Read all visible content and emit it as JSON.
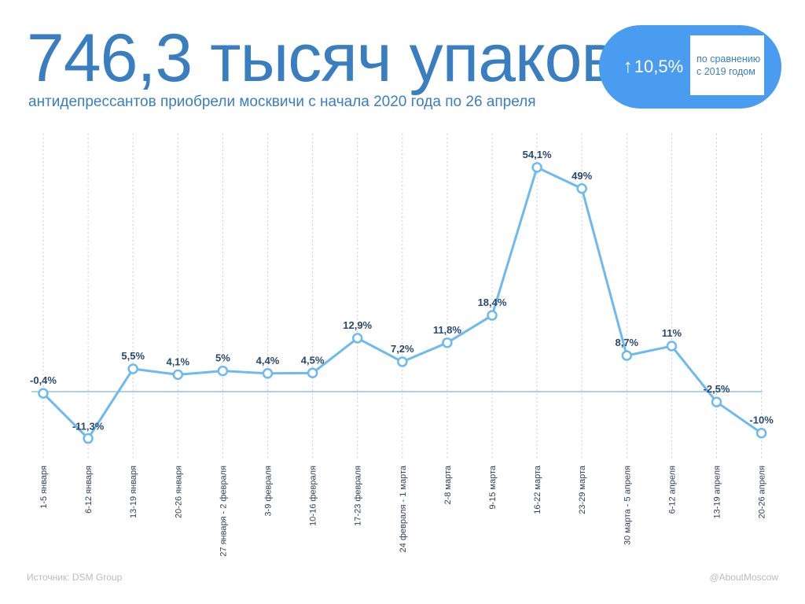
{
  "header": {
    "title": "746,3 тысяч упаковок",
    "subtitle": "антидепрессантов приобрели москвичи с начала 2020 года по 26 апреля"
  },
  "badge": {
    "arrow": "↑",
    "value": "10,5%",
    "note_line1": "по сравнению",
    "note_line2": "с 2019 годом"
  },
  "footer": {
    "source": "Источник: DSM Group",
    "handle": "@AboutMoscow"
  },
  "colors": {
    "title": "#3a7ec2",
    "badge": "#4a9cf0",
    "line": "#6db9f2",
    "baseline": "#5ba6d8",
    "point_label": "#28496e"
  },
  "chart_data": {
    "type": "line",
    "title": "",
    "xlabel": "",
    "ylabel": "",
    "grid": "vertical dashed",
    "baseline": 0,
    "categories": [
      "1-5 января",
      "6-12 января",
      "13-19 января",
      "20-26 января",
      "27 января - 2 февраля",
      "3-9 февраля",
      "10-16 февраля",
      "17-23 февраля",
      "24 февраля - 1 марта",
      "2-8 марта",
      "9-15 марта",
      "16-22 марта",
      "23-29 марта",
      "30 марта - 5 апреля",
      "6-12 апреля",
      "13-19 апреля",
      "20-26 апреля"
    ],
    "values": [
      -0.4,
      -11.3,
      5.5,
      4.1,
      5,
      4.4,
      4.5,
      12.9,
      7.2,
      11.8,
      18.4,
      54.1,
      49,
      8.7,
      11,
      -2.5,
      -10
    ],
    "labels": [
      "-0,4%",
      "-11,3%",
      "5,5%",
      "4,1%",
      "5%",
      "4,4%",
      "4,5%",
      "12,9%",
      "7,2%",
      "11,8%",
      "18,4%",
      "54,1%",
      "49%",
      "8,7%",
      "11%",
      "-2,5%",
      "-10%"
    ]
  }
}
